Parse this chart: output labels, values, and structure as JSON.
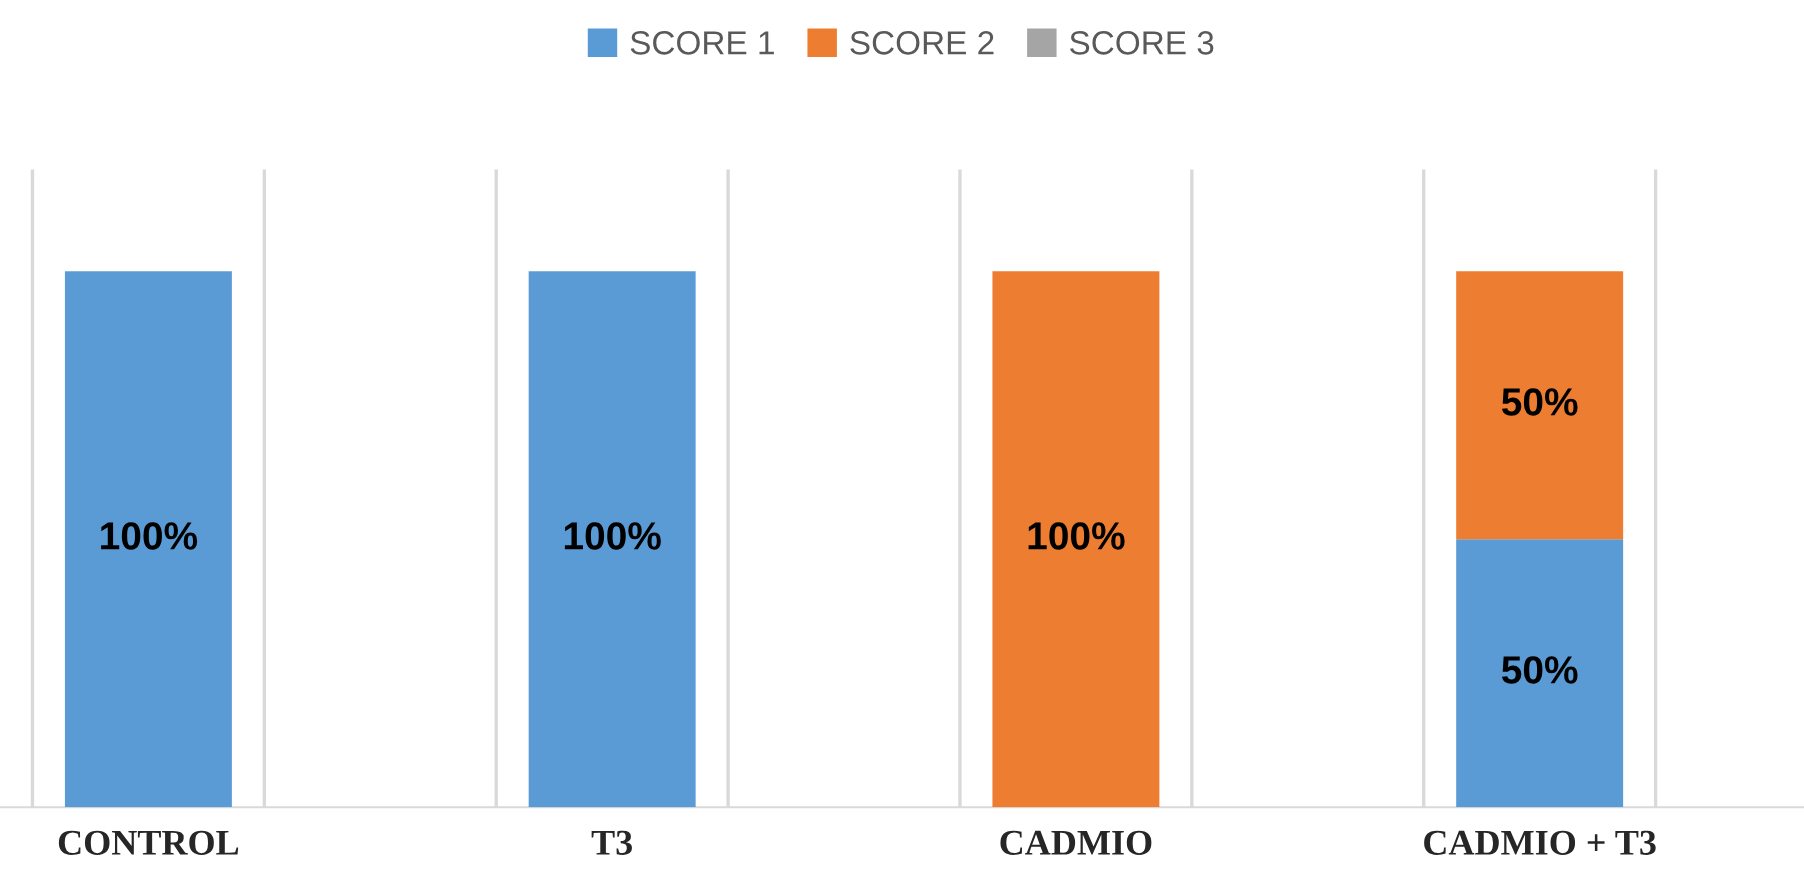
{
  "chart_data": {
    "type": "bar",
    "stacked": true,
    "categories": [
      "CONTROL",
      "T3",
      "CADMIO",
      "CADMIO + T3"
    ],
    "series": [
      {
        "name": "SCORE 1",
        "color": "#5b9bd5",
        "values": [
          100,
          100,
          null,
          50
        ],
        "value_labels": [
          "100%",
          "100%",
          null,
          "50%"
        ]
      },
      {
        "name": "SCORE 2",
        "color": "#ed7d31",
        "values": [
          null,
          null,
          100,
          50
        ],
        "value_labels": [
          null,
          null,
          "100%",
          "50%"
        ]
      },
      {
        "name": "SCORE 3",
        "color": "#a5a5a5",
        "values": [
          null,
          null,
          null,
          null
        ]
      }
    ],
    "legend": "top",
    "grid": "x",
    "tick_labels": "x"
  }
}
